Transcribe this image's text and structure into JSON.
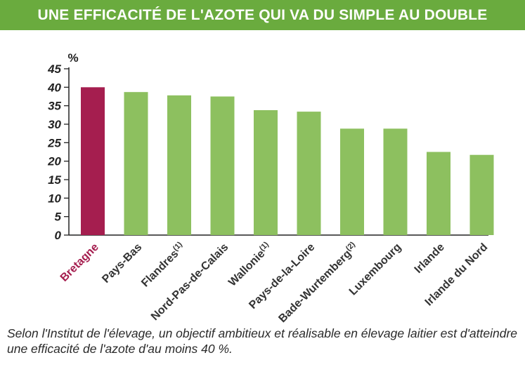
{
  "title": "UNE EFFICACITÉ DE L'AZOTE QUI VA DU SIMPLE AU DOUBLE",
  "caption": "Selon l'Institut de l'élevage, un objectif ambitieux et réalisable en élevage laitier est d'atteindre une efficacité de l'azote d'au moins 40 %.",
  "colors": {
    "header": "#6aab3e",
    "highlight_bar": "#a51e4f",
    "bar": "#8dc05f",
    "highlight_label": "#a51e4f"
  },
  "chart_data": {
    "type": "bar",
    "title": "UNE EFFICACITÉ DE L'AZOTE QUI VA DU SIMPLE AU DOUBLE",
    "ylabel": "%",
    "xlabel": "",
    "ylim": [
      0,
      45
    ],
    "yticks": [
      0,
      5,
      10,
      15,
      20,
      25,
      30,
      35,
      40,
      45
    ],
    "grid": false,
    "categories": [
      {
        "label": "Bretagne",
        "sup": ""
      },
      {
        "label": "Pays-Bas",
        "sup": ""
      },
      {
        "label": "Flandres",
        "sup": "(1)"
      },
      {
        "label": "Nord-Pas-de-Calais",
        "sup": ""
      },
      {
        "label": "Wallonie",
        "sup": "(1)"
      },
      {
        "label": "Pays-de-la-Loire",
        "sup": ""
      },
      {
        "label": "Bade-Wurtemberg",
        "sup": "(2)"
      },
      {
        "label": "Luxembourg",
        "sup": ""
      },
      {
        "label": "Irlande",
        "sup": ""
      },
      {
        "label": "Irlande du Nord",
        "sup": ""
      }
    ],
    "values": [
      40,
      38.7,
      37.8,
      37.5,
      33.8,
      33.4,
      28.8,
      28.8,
      22.5,
      21.7
    ],
    "highlight_index": 0
  }
}
